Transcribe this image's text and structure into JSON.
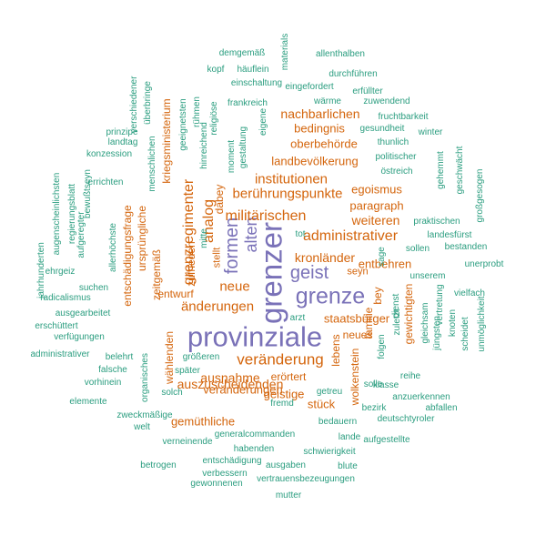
{
  "colors": {
    "teal": "#2a9d7f",
    "orange": "#d4650c",
    "purple": "#7a72b8"
  },
  "words": [
    "provinziale",
    "grenzer",
    "grenze",
    "geist",
    "formen",
    "alten",
    "veränderung",
    "administrativer",
    "institutionen",
    "militärischen",
    "berührungspunkte",
    "analog",
    "grenzregimenter",
    "kronländer",
    "änderungen",
    "neue",
    "auszuscheidenden",
    "nachbarlichen",
    "ausnahme",
    "gemüthliche",
    "weiteren",
    "staatsbürger",
    "geistige",
    "paragraph",
    "egoismus",
    "landbevölkerung",
    "oberbehörde",
    "bedingnis",
    "entbehren",
    "veränderungen",
    "stück",
    "erörtert",
    "entwurf",
    "zufrieden",
    "ursprüngliche",
    "entschädigungsfrage",
    "kriegsministerium",
    "zeitgemäß",
    "dabey",
    "stellt",
    "seyn",
    "neues",
    "bey",
    "familie",
    "lebens",
    "wolkenstein",
    "gewichtigten",
    "wählenden",
    "demgemäß",
    "materials",
    "allenthalben",
    "kopf",
    "häuflein",
    "durchführen",
    "einschaltung",
    "eingefordert",
    "erfüllter",
    "wärme",
    "zuwendend",
    "frankreich",
    "fruchtbarkeit",
    "gesundheit",
    "winter",
    "thunlich",
    "politischer",
    "östreich",
    "gehemmt",
    "geschwächt",
    "großgesogen",
    "prinzipe",
    "konzession",
    "landtag",
    "errichten",
    "verschiedener",
    "überbringe",
    "menschlichen",
    "geeignetsten",
    "rühmen",
    "religiöse",
    "mitte",
    "hinreichend",
    "moment",
    "gestaltung",
    "eigene",
    "jahrhunderten",
    "augenscheinlichsten",
    "regierungsblatt",
    "bewußtseyn",
    "aufgeregter",
    "allerhöchste",
    "praktischen",
    "landesfürst",
    "bestanden",
    "unerprobt",
    "sollen",
    "unserem",
    "vielfach",
    "sage",
    "tot",
    "ehrgeiz",
    "radicalismus",
    "ausgearbeitet",
    "erschüttert",
    "verfügungen",
    "suchen",
    "arzt",
    "zuletzt",
    "dienst",
    "folgen",
    "gleichsam",
    "vertretung",
    "jüngsten",
    "knoten",
    "scheidet",
    "unmöglichkeit",
    "administrativer",
    "belehrt",
    "falsche",
    "vorhinein",
    "elemente",
    "zweckmäßige",
    "welt",
    "organisches",
    "größeren",
    "später",
    "solch",
    "getreu",
    "fremd",
    "bezirk",
    "reihe",
    "klasse",
    "solle",
    "anzuerkennen",
    "abfallen",
    "deutschtyroler",
    "bedauern",
    "generalcommanden",
    "lande",
    "aufgestellte",
    "verneinende",
    "habenden",
    "schwierigkeit",
    "entschädigung",
    "ausgaben",
    "blute",
    "betrogen",
    "verbessern",
    "vertrauensbezeugungen",
    "gewonnenen",
    "mutter"
  ]
}
